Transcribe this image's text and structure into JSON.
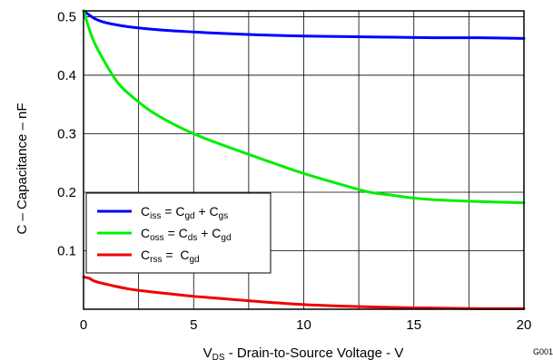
{
  "chart_data": {
    "type": "line",
    "xlabel": {
      "main": "V",
      "sub": "DS",
      "rest": " - Drain-to-Source Voltage - V"
    },
    "ylabel": "C – Capacitance – nF",
    "figure_id": "G001",
    "xlim": [
      0,
      20
    ],
    "ylim": [
      0,
      0.51
    ],
    "x_ticks": [
      "0",
      "5",
      "10",
      "15",
      "20"
    ],
    "x_tick_values": [
      0,
      5,
      10,
      15,
      20
    ],
    "y_ticks": [
      "0.1",
      "0.2",
      "0.3",
      "0.4",
      "0.5"
    ],
    "y_tick_values": [
      0.1,
      0.2,
      0.3,
      0.4,
      0.5
    ],
    "grid": true,
    "legend_position": "lower-left",
    "series": [
      {
        "key": "iss",
        "color": "#0000ff",
        "legend": [
          [
            "C",
            ""
          ],
          [
            "iss",
            "sub"
          ],
          [
            " = C",
            ""
          ],
          [
            "gd",
            "sub"
          ],
          [
            " + C",
            ""
          ],
          [
            "gs",
            "sub"
          ]
        ],
        "x": [
          0,
          0.5,
          1,
          2,
          3,
          4,
          5,
          6,
          8,
          10,
          12,
          14,
          16,
          18,
          20
        ],
        "y": [
          0.51,
          0.497,
          0.49,
          0.483,
          0.479,
          0.476,
          0.474,
          0.472,
          0.469,
          0.467,
          0.466,
          0.465,
          0.464,
          0.464,
          0.463
        ]
      },
      {
        "key": "oss",
        "color": "#00ee00",
        "legend": [
          [
            "C",
            ""
          ],
          [
            "oss",
            "sub"
          ],
          [
            " = C",
            ""
          ],
          [
            "ds",
            "sub"
          ],
          [
            " + C",
            ""
          ],
          [
            "gd",
            "sub"
          ]
        ],
        "x": [
          0,
          0.25,
          0.5,
          1,
          1.5,
          2,
          3,
          4,
          5,
          6,
          8,
          10,
          12,
          13,
          14,
          15,
          16,
          18,
          20
        ],
        "y": [
          0.51,
          0.48,
          0.455,
          0.42,
          0.39,
          0.37,
          0.34,
          0.318,
          0.3,
          0.285,
          0.258,
          0.232,
          0.21,
          0.2,
          0.195,
          0.19,
          0.187,
          0.184,
          0.182
        ]
      },
      {
        "key": "rss",
        "color": "#ee0000",
        "legend": [
          [
            "C",
            ""
          ],
          [
            "rss",
            "sub"
          ],
          [
            " =  C",
            ""
          ],
          [
            "gd",
            "sub"
          ]
        ],
        "x": [
          0,
          0.25,
          0.5,
          1,
          2,
          3,
          4,
          5,
          6,
          8,
          10,
          12,
          14,
          16,
          18,
          20
        ],
        "y": [
          0.055,
          0.053,
          0.048,
          0.043,
          0.035,
          0.03,
          0.026,
          0.022,
          0.019,
          0.013,
          0.008,
          0.005,
          0.003,
          0.002,
          0.001,
          0.001
        ]
      }
    ]
  }
}
